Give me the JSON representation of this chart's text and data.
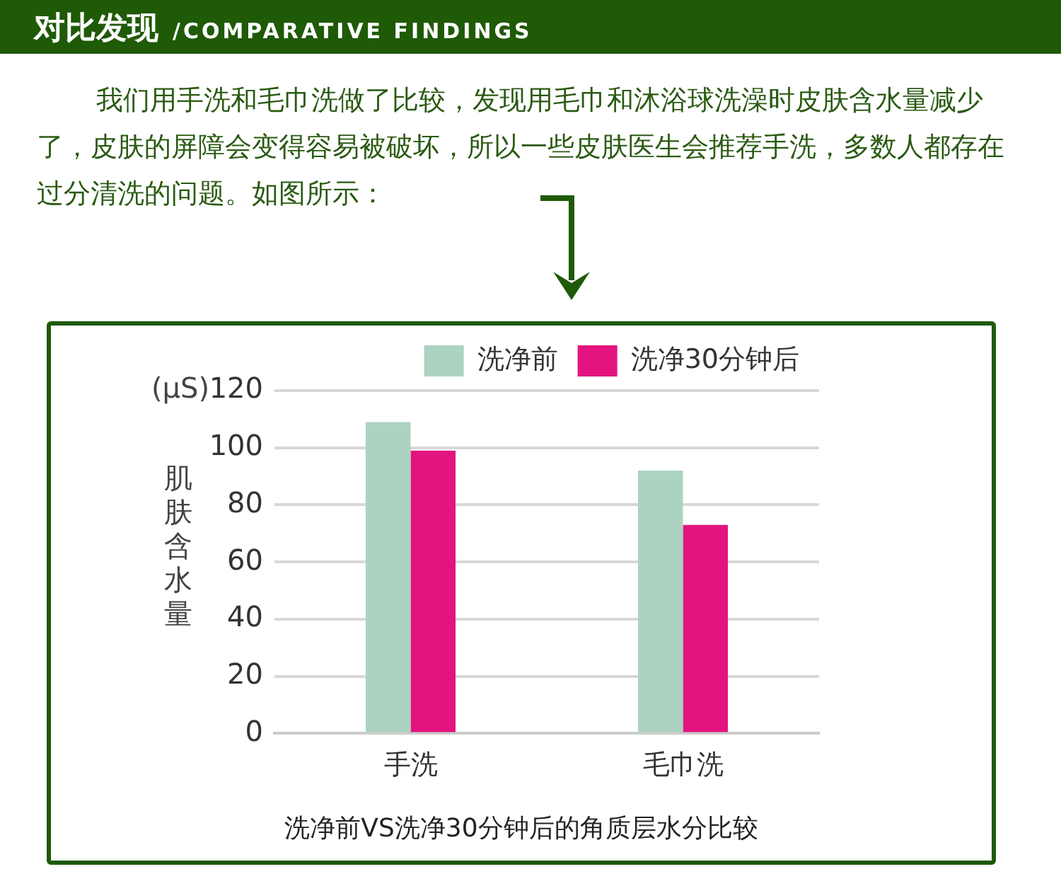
{
  "chart_data": {
    "type": "bar",
    "title": "对比发现",
    "subtitle": "/COMPARATIVE FINDINGS",
    "ylabel": "肌肤含水量",
    "categories": [
      "手洗",
      "毛巾洗"
    ],
    "series": [
      {
        "name": "洗净前",
        "color": "#acd3c1",
        "values": [
          109,
          92
        ]
      },
      {
        "name": "洗净30分钟后",
        "color": "#e3147f",
        "values": [
          99,
          73
        ]
      }
    ],
    "ylim": [
      0,
      120
    ],
    "yticks": [
      0,
      20,
      40,
      60,
      80,
      100,
      120
    ],
    "grid": "y",
    "legend": "top right",
    "annotations": [
      "我们用手洗和毛巾洗做了比较，发现用毛巾和沐浴球洗澡时皮肤含水量减少了，皮肤的屏障会变得容易被破坏，所以一些皮肤医生会推荐手洗，多数人都存在过分清洗的问题。如图所示：",
      "(μS)",
      "洗净前VS洗净30分钟后的角质层水分比较"
    ]
  }
}
